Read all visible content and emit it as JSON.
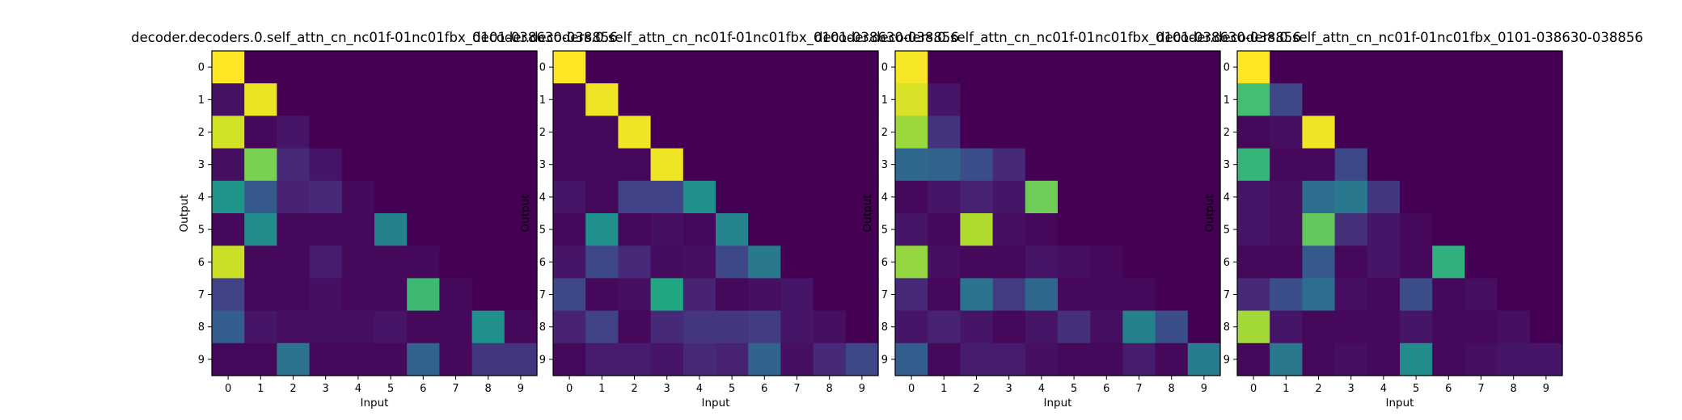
{
  "chart_data": [
    {
      "type": "heatmap",
      "title": "decoder.decoders.0.self_attn_cn_nc01f-01nc01fbx_0101-038630-038856",
      "xlabel": "Input",
      "ylabel": "Output",
      "x_ticks": [
        "0",
        "1",
        "2",
        "3",
        "4",
        "5",
        "6",
        "7",
        "8",
        "9"
      ],
      "y_ticks": [
        "0",
        "1",
        "2",
        "3",
        "4",
        "5",
        "6",
        "7",
        "8",
        "9"
      ],
      "colormap": "viridis",
      "value_range": [
        0,
        1
      ],
      "values": [
        [
          1.0,
          0.0,
          0.0,
          0.0,
          0.0,
          0.0,
          0.0,
          0.0,
          0.0,
          0.0
        ],
        [
          0.05,
          0.97,
          0.0,
          0.0,
          0.0,
          0.0,
          0.0,
          0.0,
          0.0,
          0.0
        ],
        [
          0.93,
          0.02,
          0.06,
          0.0,
          0.0,
          0.0,
          0.0,
          0.0,
          0.0,
          0.0
        ],
        [
          0.04,
          0.8,
          0.12,
          0.06,
          0.0,
          0.0,
          0.0,
          0.0,
          0.0,
          0.0
        ],
        [
          0.52,
          0.28,
          0.1,
          0.12,
          0.02,
          0.0,
          0.0,
          0.0,
          0.0,
          0.0
        ],
        [
          0.02,
          0.48,
          0.02,
          0.02,
          0.02,
          0.44,
          0.0,
          0.0,
          0.0,
          0.0
        ],
        [
          0.92,
          0.02,
          0.02,
          0.08,
          0.02,
          0.02,
          0.02,
          0.0,
          0.0,
          0.0
        ],
        [
          0.2,
          0.02,
          0.02,
          0.04,
          0.02,
          0.02,
          0.68,
          0.02,
          0.0,
          0.0
        ],
        [
          0.3,
          0.06,
          0.04,
          0.04,
          0.04,
          0.06,
          0.02,
          0.02,
          0.5,
          0.02
        ],
        [
          0.02,
          0.02,
          0.38,
          0.02,
          0.02,
          0.02,
          0.32,
          0.02,
          0.16,
          0.16
        ]
      ]
    },
    {
      "type": "heatmap",
      "title": "decoder.decoders.0.self_attn_cn_nc01f-01nc01fbx_0101-038630-038856",
      "xlabel": "Input",
      "ylabel": "Output",
      "x_ticks": [
        "0",
        "1",
        "2",
        "3",
        "4",
        "5",
        "6",
        "7",
        "8",
        "9"
      ],
      "y_ticks": [
        "0",
        "1",
        "2",
        "3",
        "4",
        "5",
        "6",
        "7",
        "8",
        "9"
      ],
      "colormap": "viridis",
      "value_range": [
        0,
        1
      ],
      "values": [
        [
          1.0,
          0.0,
          0.0,
          0.0,
          0.0,
          0.0,
          0.0,
          0.0,
          0.0,
          0.0
        ],
        [
          0.02,
          0.98,
          0.0,
          0.0,
          0.0,
          0.0,
          0.0,
          0.0,
          0.0,
          0.0
        ],
        [
          0.02,
          0.02,
          0.98,
          0.0,
          0.0,
          0.0,
          0.0,
          0.0,
          0.0,
          0.0
        ],
        [
          0.02,
          0.02,
          0.02,
          0.98,
          0.0,
          0.0,
          0.0,
          0.0,
          0.0,
          0.0
        ],
        [
          0.06,
          0.02,
          0.2,
          0.2,
          0.5,
          0.0,
          0.0,
          0.0,
          0.0,
          0.0
        ],
        [
          0.02,
          0.5,
          0.02,
          0.04,
          0.02,
          0.45,
          0.0,
          0.0,
          0.0,
          0.0
        ],
        [
          0.06,
          0.22,
          0.12,
          0.03,
          0.04,
          0.22,
          0.4,
          0.0,
          0.0,
          0.0
        ],
        [
          0.22,
          0.02,
          0.04,
          0.6,
          0.1,
          0.02,
          0.04,
          0.06,
          0.0,
          0.0
        ],
        [
          0.1,
          0.2,
          0.02,
          0.12,
          0.16,
          0.16,
          0.18,
          0.06,
          0.04,
          0.0
        ],
        [
          0.02,
          0.08,
          0.08,
          0.06,
          0.12,
          0.1,
          0.32,
          0.04,
          0.12,
          0.22
        ]
      ]
    },
    {
      "type": "heatmap",
      "title": "decoder.decoders.0.self_attn_cn_nc01f-01nc01fbx_0101-038630-038856",
      "xlabel": "Input",
      "ylabel": "Output",
      "x_ticks": [
        "0",
        "1",
        "2",
        "3",
        "4",
        "5",
        "6",
        "7",
        "8",
        "9"
      ],
      "y_ticks": [
        "0",
        "1",
        "2",
        "3",
        "4",
        "5",
        "6",
        "7",
        "8",
        "9"
      ],
      "colormap": "viridis",
      "value_range": [
        0,
        1
      ],
      "values": [
        [
          0.99,
          0.0,
          0.0,
          0.0,
          0.0,
          0.0,
          0.0,
          0.0,
          0.0,
          0.0
        ],
        [
          0.94,
          0.06,
          0.0,
          0.0,
          0.0,
          0.0,
          0.0,
          0.0,
          0.0,
          0.0
        ],
        [
          0.85,
          0.15,
          0.0,
          0.0,
          0.0,
          0.0,
          0.0,
          0.0,
          0.0,
          0.0
        ],
        [
          0.34,
          0.32,
          0.24,
          0.12,
          0.0,
          0.0,
          0.0,
          0.0,
          0.0,
          0.0
        ],
        [
          0.02,
          0.06,
          0.1,
          0.06,
          0.78,
          0.0,
          0.0,
          0.0,
          0.0,
          0.0
        ],
        [
          0.06,
          0.02,
          0.88,
          0.04,
          0.02,
          0.0,
          0.0,
          0.0,
          0.0,
          0.0
        ],
        [
          0.84,
          0.04,
          0.02,
          0.02,
          0.06,
          0.04,
          0.02,
          0.0,
          0.0,
          0.0
        ],
        [
          0.12,
          0.02,
          0.38,
          0.18,
          0.34,
          0.02,
          0.02,
          0.02,
          0.0,
          0.0
        ],
        [
          0.06,
          0.1,
          0.06,
          0.02,
          0.06,
          0.14,
          0.04,
          0.44,
          0.24,
          0.0
        ],
        [
          0.3,
          0.02,
          0.08,
          0.08,
          0.04,
          0.02,
          0.02,
          0.08,
          0.02,
          0.42
        ]
      ]
    },
    {
      "type": "heatmap",
      "title": "decoder.decoders.0.self_attn_cn_nc01f-01nc01fbx_0101-038630-038856",
      "xlabel": "Input",
      "ylabel": "Output",
      "x_ticks": [
        "0",
        "1",
        "2",
        "3",
        "4",
        "5",
        "6",
        "7",
        "8",
        "9"
      ],
      "y_ticks": [
        "0",
        "1",
        "2",
        "3",
        "4",
        "5",
        "6",
        "7",
        "8",
        "9"
      ],
      "colormap": "viridis",
      "value_range": [
        0,
        1
      ],
      "values": [
        [
          1.0,
          0.0,
          0.0,
          0.0,
          0.0,
          0.0,
          0.0,
          0.0,
          0.0,
          0.0
        ],
        [
          0.7,
          0.22,
          0.0,
          0.0,
          0.0,
          0.0,
          0.0,
          0.0,
          0.0,
          0.0
        ],
        [
          0.02,
          0.04,
          0.98,
          0.0,
          0.0,
          0.0,
          0.0,
          0.0,
          0.0,
          0.0
        ],
        [
          0.66,
          0.02,
          0.02,
          0.22,
          0.0,
          0.0,
          0.0,
          0.0,
          0.0,
          0.0
        ],
        [
          0.06,
          0.04,
          0.36,
          0.4,
          0.16,
          0.0,
          0.0,
          0.0,
          0.0,
          0.0
        ],
        [
          0.06,
          0.04,
          0.76,
          0.14,
          0.06,
          0.02,
          0.0,
          0.0,
          0.0,
          0.0
        ],
        [
          0.02,
          0.02,
          0.28,
          0.02,
          0.06,
          0.02,
          0.64,
          0.0,
          0.0,
          0.0
        ],
        [
          0.12,
          0.24,
          0.36,
          0.04,
          0.02,
          0.24,
          0.02,
          0.04,
          0.0,
          0.0
        ],
        [
          0.86,
          0.06,
          0.02,
          0.02,
          0.02,
          0.06,
          0.02,
          0.02,
          0.04,
          0.0
        ],
        [
          0.02,
          0.4,
          0.02,
          0.04,
          0.02,
          0.48,
          0.02,
          0.04,
          0.06,
          0.06
        ]
      ]
    }
  ]
}
